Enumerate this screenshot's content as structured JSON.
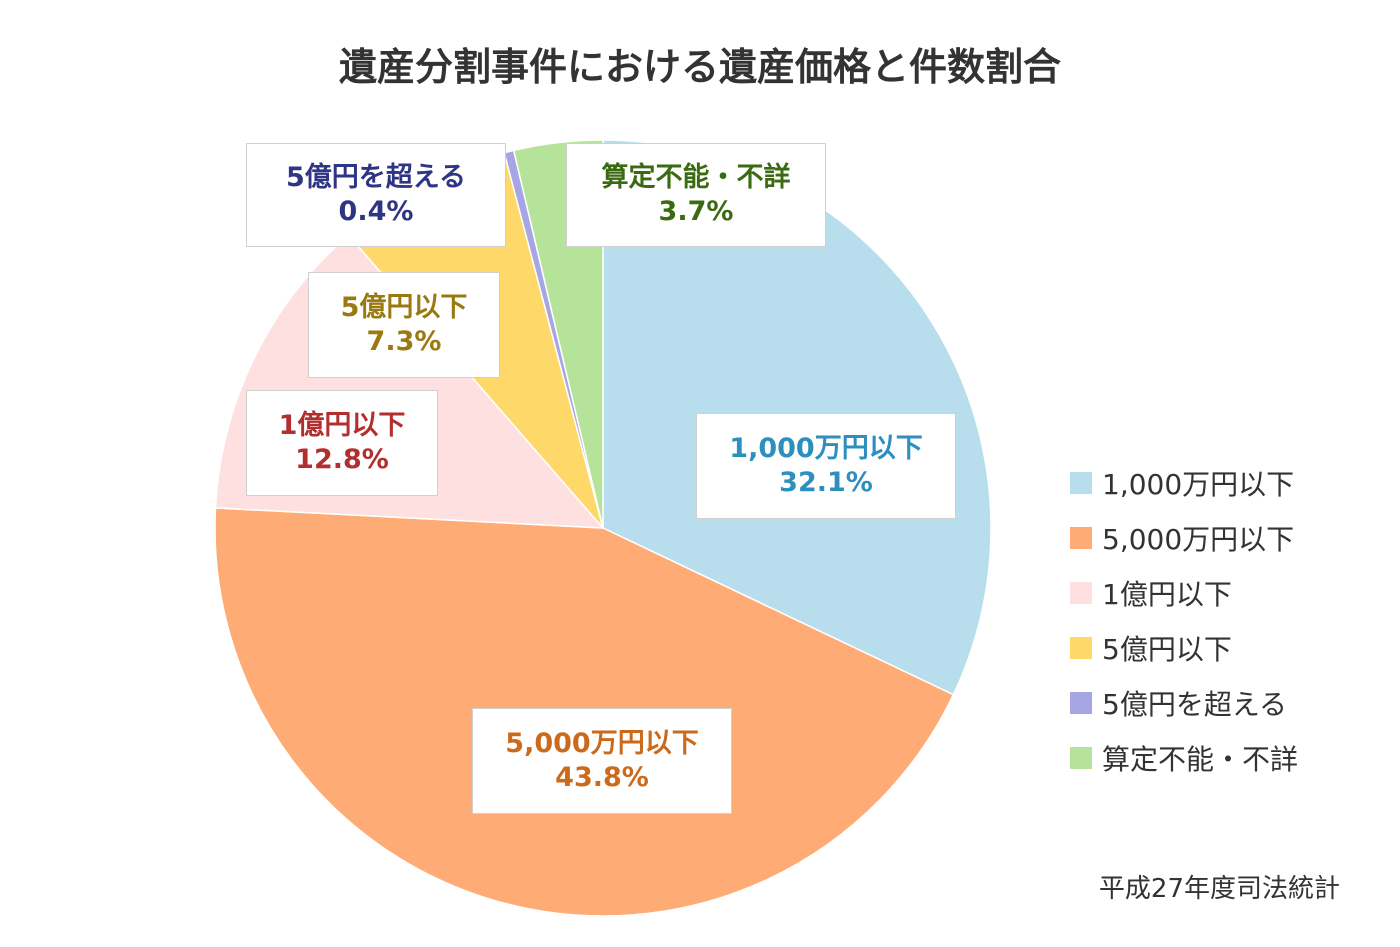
{
  "chart_data": {
    "type": "pie",
    "title": "遺産分割事件における遺産価格と件数割合",
    "source": "平成27年度司法統計",
    "legend_position": "right",
    "start_angle_deg": 0,
    "direction": "clockwise",
    "categories": [
      "1,000万円以下",
      "5,000万円以下",
      "1億円以下",
      "5億円以下",
      "5億円を超える",
      "算定不能・不詳"
    ],
    "values": [
      32.1,
      43.8,
      12.8,
      7.3,
      0.4,
      3.7
    ],
    "unit": "%",
    "colors": [
      "#b8ddec",
      "#ffab75",
      "#ffe0e0",
      "#ffd86a",
      "#a6a6e4",
      "#b6e39a"
    ],
    "label_colors": [
      "#2d8fbe",
      "#cc6a1c",
      "#b32e2e",
      "#9a7a10",
      "#2e3585",
      "#3a6b12"
    ],
    "data_labels": [
      {
        "name": "1,000万円以下",
        "value": "32.1%"
      },
      {
        "name": "5,000万円以下",
        "value": "43.8%"
      },
      {
        "name": "1億円以下",
        "value": "12.8%"
      },
      {
        "name": "5億円以下",
        "value": "7.3%"
      },
      {
        "name": "5億円を超える",
        "value": "0.4%"
      },
      {
        "name": "算定不能・不詳",
        "value": "3.7%"
      }
    ]
  }
}
